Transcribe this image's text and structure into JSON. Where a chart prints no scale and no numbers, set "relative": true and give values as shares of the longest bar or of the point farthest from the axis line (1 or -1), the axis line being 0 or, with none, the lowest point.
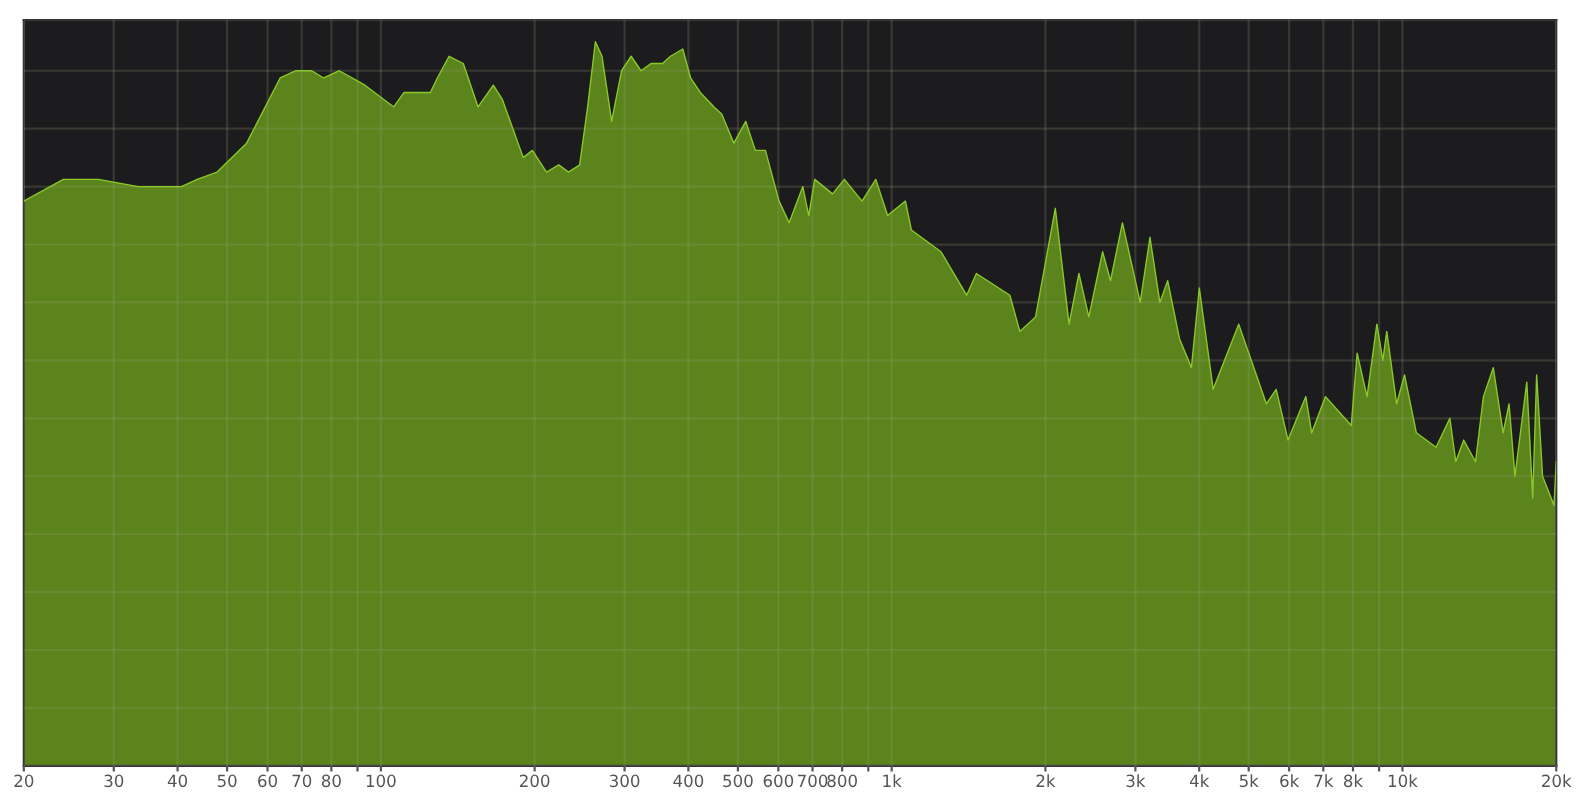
{
  "chart_data": {
    "type": "area",
    "relative": true,
    "log": "x",
    "grid": true,
    "xlim": [
      20,
      20000
    ],
    "xticks": [
      20,
      30,
      40,
      50,
      60,
      70,
      80,
      {
        "value": 90,
        "label": null
      },
      100,
      200,
      300,
      400,
      500,
      600,
      700,
      800,
      {
        "value": 900,
        "label": null
      },
      {
        "value": 1000,
        "label": "1k"
      },
      {
        "value": 2000,
        "label": "2k"
      },
      {
        "value": 3000,
        "label": "3k"
      },
      {
        "value": 4000,
        "label": "4k"
      },
      {
        "value": 5000,
        "label": "5k"
      },
      {
        "value": 6000,
        "label": "6k"
      },
      {
        "value": 7000,
        "label": "7k"
      },
      {
        "value": 8000,
        "label": "8k"
      },
      {
        "value": 9000,
        "label": null
      },
      {
        "value": 10000,
        "label": "10k"
      },
      {
        "value": 20000,
        "label": "20k"
      }
    ],
    "series": [
      {
        "color": "#5f8a1c",
        "x": [
          20,
          23.9,
          28.0,
          33.5,
          40.7,
          43.7,
          47.8,
          54.6,
          63.5,
          68.2,
          73.2,
          77.3,
          82.9,
          93.1,
          106,
          111,
          125,
          129,
          136,
          145,
          155,
          166,
          173,
          190,
          198,
          211,
          223,
          233,
          245,
          254,
          263,
          271,
          283,
          296,
          309,
          323,
          338,
          356,
          369,
          390,
          404,
          422,
          449,
          465,
          491,
          518,
          541,
          566,
          602,
          630,
          670,
          688,
          707,
          766,
          808,
          875,
          931,
          982,
          1064,
          1093,
          1249,
          1402,
          1465,
          1704,
          1782,
          1913,
          2091,
          2225,
          2326,
          2432,
          2588,
          2682,
          2830,
          3066,
          3204,
          3350,
          3470,
          3660,
          3862,
          4002,
          4260,
          4780,
          5414,
          5660,
          5970,
          6468,
          6642,
          7068,
          7938,
          8152,
          8524,
          8910,
          9152,
          9316,
          9740,
          10092,
          10646,
          11636,
          12382,
          12718,
          13178,
          13900,
          14404,
          15058,
          15742,
          16168,
          16604,
          17514,
          17988,
          18310,
          18804,
          19800,
          20000
        ],
        "values": [
          0.78,
          0.81,
          0.81,
          0.8,
          0.8,
          0.81,
          0.82,
          0.86,
          0.95,
          0.96,
          0.96,
          0.95,
          0.96,
          0.94,
          0.91,
          0.93,
          0.93,
          0.95,
          0.98,
          0.97,
          0.91,
          0.94,
          0.92,
          0.84,
          0.85,
          0.82,
          0.83,
          0.82,
          0.83,
          0.91,
          1.0,
          0.98,
          0.89,
          0.96,
          0.98,
          0.96,
          0.97,
          0.97,
          0.98,
          0.99,
          0.95,
          0.93,
          0.91,
          0.9,
          0.86,
          0.89,
          0.85,
          0.85,
          0.78,
          0.75,
          0.8,
          0.76,
          0.81,
          0.79,
          0.81,
          0.78,
          0.81,
          0.76,
          0.78,
          0.74,
          0.71,
          0.65,
          0.68,
          0.65,
          0.6,
          0.62,
          0.77,
          0.61,
          0.68,
          0.62,
          0.71,
          0.67,
          0.75,
          0.64,
          0.73,
          0.64,
          0.67,
          0.59,
          0.55,
          0.66,
          0.52,
          0.61,
          0.5,
          0.52,
          0.45,
          0.51,
          0.46,
          0.51,
          0.47,
          0.57,
          0.51,
          0.61,
          0.56,
          0.6,
          0.5,
          0.54,
          0.46,
          0.44,
          0.48,
          0.42,
          0.45,
          0.42,
          0.51,
          0.55,
          0.46,
          0.5,
          0.4,
          0.53,
          0.37,
          0.54,
          0.4,
          0.36,
          0.42
        ]
      }
    ]
  }
}
